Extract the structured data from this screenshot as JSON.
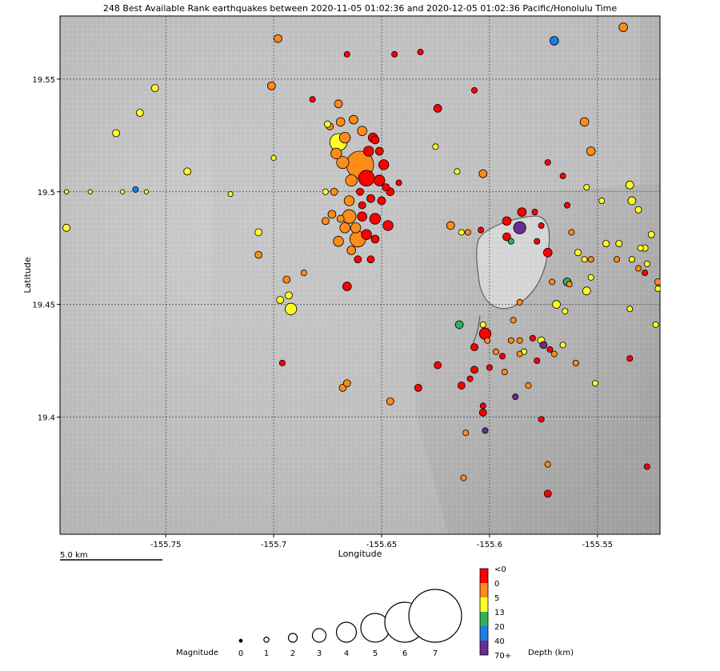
{
  "title": "248 Best Available Rank earthquakes between 2020-11-05 01:02:36 and 2020-12-05 01:02:36 Pacific/Honolulu Time",
  "chart_data": {
    "type": "scatter",
    "xlabel": "Longitude",
    "ylabel": "Latitude",
    "xlim": [
      -155.799,
      -155.521
    ],
    "ylim": [
      19.348,
      19.578
    ],
    "x_ticks": [
      {
        "value": -155.75,
        "label": "-155.75"
      },
      {
        "value": -155.7,
        "label": "-155.7"
      },
      {
        "value": -155.65,
        "label": "-155.65"
      },
      {
        "value": -155.6,
        "label": "-155.6"
      },
      {
        "value": -155.55,
        "label": "-155.55"
      }
    ],
    "y_ticks": [
      {
        "value": 19.55,
        "label": "19.55"
      },
      {
        "value": 19.5,
        "label": "19.5"
      },
      {
        "value": 19.45,
        "label": "19.45"
      },
      {
        "value": 19.4,
        "label": "19.4"
      }
    ],
    "grid": true,
    "scale_bar": "5.0 km",
    "points": [
      {
        "lon": -155.66,
        "lat": 19.512,
        "mag": 3.4,
        "depth": 2
      },
      {
        "lon": -155.67,
        "lat": 19.522,
        "mag": 2.0,
        "depth": 8
      },
      {
        "lon": -155.657,
        "lat": 19.506,
        "mag": 1.8,
        "depth": -1
      },
      {
        "lon": -155.661,
        "lat": 19.479,
        "mag": 1.8,
        "depth": 2
      },
      {
        "lon": -155.665,
        "lat": 19.489,
        "mag": 1.5,
        "depth": 2
      },
      {
        "lon": -155.668,
        "lat": 19.513,
        "mag": 1.3,
        "depth": 2
      },
      {
        "lon": -155.664,
        "lat": 19.505,
        "mag": 1.2,
        "depth": 2
      },
      {
        "lon": -155.667,
        "lat": 19.524,
        "mag": 1.1,
        "depth": 2
      },
      {
        "lon": -155.651,
        "lat": 19.505,
        "mag": 1.1,
        "depth": -1
      },
      {
        "lon": -155.649,
        "lat": 19.512,
        "mag": 1.0,
        "depth": -1
      },
      {
        "lon": -155.656,
        "lat": 19.518,
        "mag": 1.0,
        "depth": -1
      },
      {
        "lon": -155.665,
        "lat": 19.496,
        "mag": 1.0,
        "depth": 2
      },
      {
        "lon": -155.671,
        "lat": 19.517,
        "mag": 1.1,
        "depth": 2
      },
      {
        "lon": -155.659,
        "lat": 19.527,
        "mag": 0.9,
        "depth": 2
      },
      {
        "lon": -155.654,
        "lat": 19.524,
        "mag": 0.9,
        "depth": -1
      },
      {
        "lon": -155.663,
        "lat": 19.532,
        "mag": 0.8,
        "depth": 2
      },
      {
        "lon": -155.669,
        "lat": 19.531,
        "mag": 0.8,
        "depth": 2
      },
      {
        "lon": -155.662,
        "lat": 19.484,
        "mag": 1.0,
        "depth": 2
      },
      {
        "lon": -155.667,
        "lat": 19.484,
        "mag": 1.0,
        "depth": 2
      },
      {
        "lon": -155.67,
        "lat": 19.478,
        "mag": 1.0,
        "depth": 2
      },
      {
        "lon": -155.657,
        "lat": 19.481,
        "mag": 1.0,
        "depth": -1
      },
      {
        "lon": -155.653,
        "lat": 19.488,
        "mag": 1.1,
        "depth": -1
      },
      {
        "lon": -155.659,
        "lat": 19.489,
        "mag": 0.9,
        "depth": -1
      },
      {
        "lon": -155.647,
        "lat": 19.485,
        "mag": 1.0,
        "depth": -1
      },
      {
        "lon": -155.664,
        "lat": 19.474,
        "mag": 0.8,
        "depth": 2
      },
      {
        "lon": -155.661,
        "lat": 19.47,
        "mag": 0.6,
        "depth": -1
      },
      {
        "lon": -155.653,
        "lat": 19.479,
        "mag": 0.7,
        "depth": -1
      },
      {
        "lon": -155.672,
        "lat": 19.5,
        "mag": 0.6,
        "depth": 2
      },
      {
        "lon": -155.673,
        "lat": 19.49,
        "mag": 0.7,
        "depth": 2
      },
      {
        "lon": -155.666,
        "lat": 19.458,
        "mag": 0.8,
        "depth": -1
      },
      {
        "lon": -155.653,
        "lat": 19.523,
        "mag": 0.7,
        "depth": -1
      },
      {
        "lon": -155.655,
        "lat": 19.497,
        "mag": 0.7,
        "depth": -1
      },
      {
        "lon": -155.66,
        "lat": 19.5,
        "mag": 0.6,
        "depth": -1
      },
      {
        "lon": -155.65,
        "lat": 19.496,
        "mag": 0.7,
        "depth": -1
      },
      {
        "lon": -155.655,
        "lat": 19.47,
        "mag": 0.6,
        "depth": -1
      },
      {
        "lon": -155.669,
        "lat": 19.488,
        "mag": 0.6,
        "depth": 2
      },
      {
        "lon": -155.648,
        "lat": 19.502,
        "mag": 0.6,
        "depth": -1
      },
      {
        "lon": -155.651,
        "lat": 19.518,
        "mag": 0.7,
        "depth": -1
      },
      {
        "lon": -155.676,
        "lat": 19.487,
        "mag": 0.6,
        "depth": 2
      },
      {
        "lon": -155.646,
        "lat": 19.5,
        "mag": 0.7,
        "depth": -1
      },
      {
        "lon": -155.659,
        "lat": 19.494,
        "mag": 0.6,
        "depth": -1
      },
      {
        "lon": -155.674,
        "lat": 19.529,
        "mag": 0.6,
        "depth": 2
      },
      {
        "lon": -155.698,
        "lat": 19.568,
        "mag": 0.7,
        "depth": 2
      },
      {
        "lon": -155.701,
        "lat": 19.547,
        "mag": 0.7,
        "depth": 2
      },
      {
        "lon": -155.67,
        "lat": 19.539,
        "mag": 0.7,
        "depth": 2
      },
      {
        "lon": -155.666,
        "lat": 19.561,
        "mag": 0.4,
        "depth": -1
      },
      {
        "lon": -155.682,
        "lat": 19.541,
        "mag": 0.4,
        "depth": -1
      },
      {
        "lon": -155.675,
        "lat": 19.53,
        "mag": 0.5,
        "depth": 8
      },
      {
        "lon": -155.676,
        "lat": 19.5,
        "mag": 0.4,
        "depth": 8
      },
      {
        "lon": -155.624,
        "lat": 19.537,
        "mag": 0.7,
        "depth": -1
      },
      {
        "lon": -155.632,
        "lat": 19.562,
        "mag": 0.4,
        "depth": -1
      },
      {
        "lon": -155.644,
        "lat": 19.561,
        "mag": 0.4,
        "depth": -1
      },
      {
        "lon": -155.607,
        "lat": 19.545,
        "mag": 0.4,
        "depth": -1
      },
      {
        "lon": -155.625,
        "lat": 19.52,
        "mag": 0.4,
        "depth": 8
      },
      {
        "lon": -155.603,
        "lat": 19.508,
        "mag": 0.7,
        "depth": 2
      },
      {
        "lon": -155.615,
        "lat": 19.509,
        "mag": 0.4,
        "depth": 8
      },
      {
        "lon": -155.642,
        "lat": 19.504,
        "mag": 0.4,
        "depth": -1
      },
      {
        "lon": -155.57,
        "lat": 19.567,
        "mag": 0.8,
        "depth": 35
      },
      {
        "lon": -155.538,
        "lat": 19.573,
        "mag": 0.8,
        "depth": 2
      },
      {
        "lon": -155.556,
        "lat": 19.531,
        "mag": 0.8,
        "depth": 2
      },
      {
        "lon": -155.553,
        "lat": 19.518,
        "mag": 0.8,
        "depth": 2
      },
      {
        "lon": -155.573,
        "lat": 19.513,
        "mag": 0.4,
        "depth": -1
      },
      {
        "lon": -155.566,
        "lat": 19.507,
        "mag": 0.4,
        "depth": -1
      },
      {
        "lon": -155.535,
        "lat": 19.503,
        "mag": 0.7,
        "depth": 8
      },
      {
        "lon": -155.534,
        "lat": 19.496,
        "mag": 0.7,
        "depth": 8
      },
      {
        "lon": -155.531,
        "lat": 19.492,
        "mag": 0.5,
        "depth": 8
      },
      {
        "lon": -155.548,
        "lat": 19.496,
        "mag": 0.4,
        "depth": 8
      },
      {
        "lon": -155.555,
        "lat": 19.502,
        "mag": 0.4,
        "depth": 8
      },
      {
        "lon": -155.564,
        "lat": 19.494,
        "mag": 0.4,
        "depth": -1
      },
      {
        "lon": -155.586,
        "lat": 19.484,
        "mag": 1.3,
        "depth": 75
      },
      {
        "lon": -155.592,
        "lat": 19.487,
        "mag": 0.8,
        "depth": -1
      },
      {
        "lon": -155.585,
        "lat": 19.491,
        "mag": 0.8,
        "depth": -1
      },
      {
        "lon": -155.592,
        "lat": 19.48,
        "mag": 0.7,
        "depth": -1
      },
      {
        "lon": -155.59,
        "lat": 19.478,
        "mag": 0.4,
        "depth": 16
      },
      {
        "lon": -155.579,
        "lat": 19.491,
        "mag": 0.4,
        "depth": -1
      },
      {
        "lon": -155.578,
        "lat": 19.478,
        "mag": 0.4,
        "depth": -1
      },
      {
        "lon": -155.576,
        "lat": 19.485,
        "mag": 0.4,
        "depth": -1
      },
      {
        "lon": -155.573,
        "lat": 19.473,
        "mag": 0.8,
        "depth": -1
      },
      {
        "lon": -155.618,
        "lat": 19.485,
        "mag": 0.7,
        "depth": 2
      },
      {
        "lon": -155.61,
        "lat": 19.482,
        "mag": 0.4,
        "depth": 2
      },
      {
        "lon": -155.604,
        "lat": 19.483,
        "mag": 0.4,
        "depth": -1
      },
      {
        "lon": -155.613,
        "lat": 19.482,
        "mag": 0.4,
        "depth": 8
      },
      {
        "lon": -155.562,
        "lat": 19.482,
        "mag": 0.4,
        "depth": 2
      },
      {
        "lon": -155.559,
        "lat": 19.473,
        "mag": 0.5,
        "depth": 8
      },
      {
        "lon": -155.556,
        "lat": 19.47,
        "mag": 0.4,
        "depth": 8
      },
      {
        "lon": -155.546,
        "lat": 19.477,
        "mag": 0.5,
        "depth": 8
      },
      {
        "lon": -155.541,
        "lat": 19.47,
        "mag": 0.4,
        "depth": 2
      },
      {
        "lon": -155.54,
        "lat": 19.477,
        "mag": 0.5,
        "depth": 8
      },
      {
        "lon": -155.553,
        "lat": 19.47,
        "mag": 0.4,
        "depth": 2
      },
      {
        "lon": -155.528,
        "lat": 19.475,
        "mag": 0.5,
        "depth": 8
      },
      {
        "lon": -155.527,
        "lat": 19.468,
        "mag": 0.4,
        "depth": 8
      },
      {
        "lon": -155.525,
        "lat": 19.481,
        "mag": 0.5,
        "depth": 8
      },
      {
        "lon": -155.53,
        "lat": 19.475,
        "mag": 0.4,
        "depth": 8
      },
      {
        "lon": -155.528,
        "lat": 19.464,
        "mag": 0.4,
        "depth": -1
      },
      {
        "lon": -155.531,
        "lat": 19.466,
        "mag": 0.4,
        "depth": 2
      },
      {
        "lon": -155.522,
        "lat": 19.46,
        "mag": 0.5,
        "depth": 2
      },
      {
        "lon": -155.522,
        "lat": 19.457,
        "mag": 0.4,
        "depth": 8
      },
      {
        "lon": -155.534,
        "lat": 19.47,
        "mag": 0.4,
        "depth": 8
      },
      {
        "lon": -155.553,
        "lat": 19.462,
        "mag": 0.4,
        "depth": 8
      },
      {
        "lon": -155.555,
        "lat": 19.456,
        "mag": 0.7,
        "depth": 8
      },
      {
        "lon": -155.563,
        "lat": 19.459,
        "mag": 0.4,
        "depth": 2
      },
      {
        "lon": -155.564,
        "lat": 19.46,
        "mag": 0.7,
        "depth": 16
      },
      {
        "lon": -155.571,
        "lat": 19.46,
        "mag": 0.4,
        "depth": 2
      },
      {
        "lon": -155.569,
        "lat": 19.45,
        "mag": 0.7,
        "depth": 8
      },
      {
        "lon": -155.565,
        "lat": 19.447,
        "mag": 0.4,
        "depth": 8
      },
      {
        "lon": -155.586,
        "lat": 19.451,
        "mag": 0.4,
        "depth": 2
      },
      {
        "lon": -155.589,
        "lat": 19.443,
        "mag": 0.4,
        "depth": 2
      },
      {
        "lon": -155.535,
        "lat": 19.448,
        "mag": 0.4,
        "depth": 8
      },
      {
        "lon": -155.523,
        "lat": 19.441,
        "mag": 0.4,
        "depth": 8
      },
      {
        "lon": -155.602,
        "lat": 19.437,
        "mag": 1.2,
        "depth": -1
      },
      {
        "lon": -155.614,
        "lat": 19.441,
        "mag": 0.7,
        "depth": 16
      },
      {
        "lon": -155.603,
        "lat": 19.441,
        "mag": 0.4,
        "depth": 8
      },
      {
        "lon": -155.607,
        "lat": 19.431,
        "mag": 0.6,
        "depth": -1
      },
      {
        "lon": -155.601,
        "lat": 19.434,
        "mag": 0.4,
        "depth": 2
      },
      {
        "lon": -155.597,
        "lat": 19.429,
        "mag": 0.4,
        "depth": 2
      },
      {
        "lon": -155.594,
        "lat": 19.427,
        "mag": 0.4,
        "depth": -1
      },
      {
        "lon": -155.59,
        "lat": 19.434,
        "mag": 0.4,
        "depth": 2
      },
      {
        "lon": -155.586,
        "lat": 19.434,
        "mag": 0.4,
        "depth": 2
      },
      {
        "lon": -155.58,
        "lat": 19.435,
        "mag": 0.4,
        "depth": -1
      },
      {
        "lon": -155.576,
        "lat": 19.434,
        "mag": 0.6,
        "depth": 8
      },
      {
        "lon": -155.575,
        "lat": 19.432,
        "mag": 0.6,
        "depth": 75
      },
      {
        "lon": -155.572,
        "lat": 19.43,
        "mag": 0.4,
        "depth": -1
      },
      {
        "lon": -155.578,
        "lat": 19.425,
        "mag": 0.4,
        "depth": -1
      },
      {
        "lon": -155.584,
        "lat": 19.429,
        "mag": 0.4,
        "depth": 8
      },
      {
        "lon": -155.586,
        "lat": 19.428,
        "mag": 0.4,
        "depth": 2
      },
      {
        "lon": -155.566,
        "lat": 19.432,
        "mag": 0.4,
        "depth": 8
      },
      {
        "lon": -155.57,
        "lat": 19.428,
        "mag": 0.4,
        "depth": 2
      },
      {
        "lon": -155.56,
        "lat": 19.424,
        "mag": 0.4,
        "depth": 2
      },
      {
        "lon": -155.535,
        "lat": 19.426,
        "mag": 0.4,
        "depth": -1
      },
      {
        "lon": -155.6,
        "lat": 19.422,
        "mag": 0.4,
        "depth": -1
      },
      {
        "lon": -155.593,
        "lat": 19.42,
        "mag": 0.4,
        "depth": 2
      },
      {
        "lon": -155.607,
        "lat": 19.421,
        "mag": 0.6,
        "depth": -1
      },
      {
        "lon": -155.609,
        "lat": 19.417,
        "mag": 0.4,
        "depth": -1
      },
      {
        "lon": -155.613,
        "lat": 19.414,
        "mag": 0.6,
        "depth": -1
      },
      {
        "lon": -155.624,
        "lat": 19.423,
        "mag": 0.6,
        "depth": -1
      },
      {
        "lon": -155.633,
        "lat": 19.413,
        "mag": 0.6,
        "depth": -1
      },
      {
        "lon": -155.603,
        "lat": 19.405,
        "mag": 0.4,
        "depth": -1
      },
      {
        "lon": -155.603,
        "lat": 19.402,
        "mag": 0.6,
        "depth": -1
      },
      {
        "lon": -155.611,
        "lat": 19.393,
        "mag": 0.4,
        "depth": 2
      },
      {
        "lon": -155.602,
        "lat": 19.394,
        "mag": 0.4,
        "depth": 75
      },
      {
        "lon": -155.582,
        "lat": 19.414,
        "mag": 0.4,
        "depth": 2
      },
      {
        "lon": -155.588,
        "lat": 19.409,
        "mag": 0.4,
        "depth": 75
      },
      {
        "lon": -155.576,
        "lat": 19.399,
        "mag": 0.4,
        "depth": -1
      },
      {
        "lon": -155.551,
        "lat": 19.415,
        "mag": 0.4,
        "depth": 8
      },
      {
        "lon": -155.573,
        "lat": 19.379,
        "mag": 0.4,
        "depth": 2
      },
      {
        "lon": -155.612,
        "lat": 19.373,
        "mag": 0.4,
        "depth": 2
      },
      {
        "lon": -155.573,
        "lat": 19.366,
        "mag": 0.6,
        "depth": -1
      },
      {
        "lon": -155.527,
        "lat": 19.378,
        "mag": 0.4,
        "depth": -1
      },
      {
        "lon": -155.646,
        "lat": 19.407,
        "mag": 0.6,
        "depth": 2
      },
      {
        "lon": -155.668,
        "lat": 19.413,
        "mag": 0.6,
        "depth": 2
      },
      {
        "lon": -155.666,
        "lat": 19.415,
        "mag": 0.6,
        "depth": 2
      },
      {
        "lon": -155.694,
        "lat": 19.461,
        "mag": 0.6,
        "depth": 2
      },
      {
        "lon": -155.697,
        "lat": 19.452,
        "mag": 0.6,
        "depth": 8
      },
      {
        "lon": -155.692,
        "lat": 19.448,
        "mag": 1.2,
        "depth": 8
      },
      {
        "lon": -155.693,
        "lat": 19.454,
        "mag": 0.6,
        "depth": 8
      },
      {
        "lon": -155.686,
        "lat": 19.464,
        "mag": 0.4,
        "depth": 2
      },
      {
        "lon": -155.707,
        "lat": 19.482,
        "mag": 0.6,
        "depth": 8
      },
      {
        "lon": -155.707,
        "lat": 19.472,
        "mag": 0.6,
        "depth": 2
      },
      {
        "lon": -155.696,
        "lat": 19.424,
        "mag": 0.4,
        "depth": -1
      },
      {
        "lon": -155.796,
        "lat": 19.484,
        "mag": 0.6,
        "depth": 8
      },
      {
        "lon": -155.773,
        "lat": 19.526,
        "mag": 0.6,
        "depth": 8
      },
      {
        "lon": -155.762,
        "lat": 19.535,
        "mag": 0.6,
        "depth": 8
      },
      {
        "lon": -155.755,
        "lat": 19.546,
        "mag": 0.6,
        "depth": 8
      },
      {
        "lon": -155.74,
        "lat": 19.509,
        "mag": 0.6,
        "depth": 8
      },
      {
        "lon": -155.764,
        "lat": 19.501,
        "mag": 0.4,
        "depth": 35
      },
      {
        "lon": -155.72,
        "lat": 19.499,
        "mag": 0.3,
        "depth": 8
      },
      {
        "lon": -155.7,
        "lat": 19.515,
        "mag": 0.3,
        "depth": 8
      },
      {
        "lon": -155.796,
        "lat": 19.5,
        "mag": 0.2,
        "depth": 8
      },
      {
        "lon": -155.785,
        "lat": 19.5,
        "mag": 0.2,
        "depth": 8
      },
      {
        "lon": -155.77,
        "lat": 19.5,
        "mag": 0.2,
        "depth": 8
      },
      {
        "lon": -155.759,
        "lat": 19.5,
        "mag": 0.2,
        "depth": 8
      }
    ]
  },
  "legend": {
    "magnitude_label": "Magnitude",
    "magnitudes": [
      "0",
      "1",
      "2",
      "3",
      "4",
      "5",
      "6",
      "7"
    ],
    "depth_label": "Depth (km)",
    "depth_bins": [
      {
        "label": "<0",
        "color": "#ff0000"
      },
      {
        "label": "0",
        "color": "#ff8c1a"
      },
      {
        "label": "5",
        "color": "#ffff26"
      },
      {
        "label": "13",
        "color": "#2eb35a"
      },
      {
        "label": "20",
        "color": "#1a80e6"
      },
      {
        "label": "40",
        "color": "#6a2c91"
      },
      {
        "label": "70+",
        "color": "#6a2c91"
      }
    ]
  },
  "colors": {
    "depth_lt0": "#ff0000",
    "depth_0_5": "#ff8c1a",
    "depth_5_13": "#ffff26",
    "depth_13_20": "#2eb35a",
    "depth_20_40": "#1a80e6",
    "depth_70plus": "#6a2c91"
  }
}
